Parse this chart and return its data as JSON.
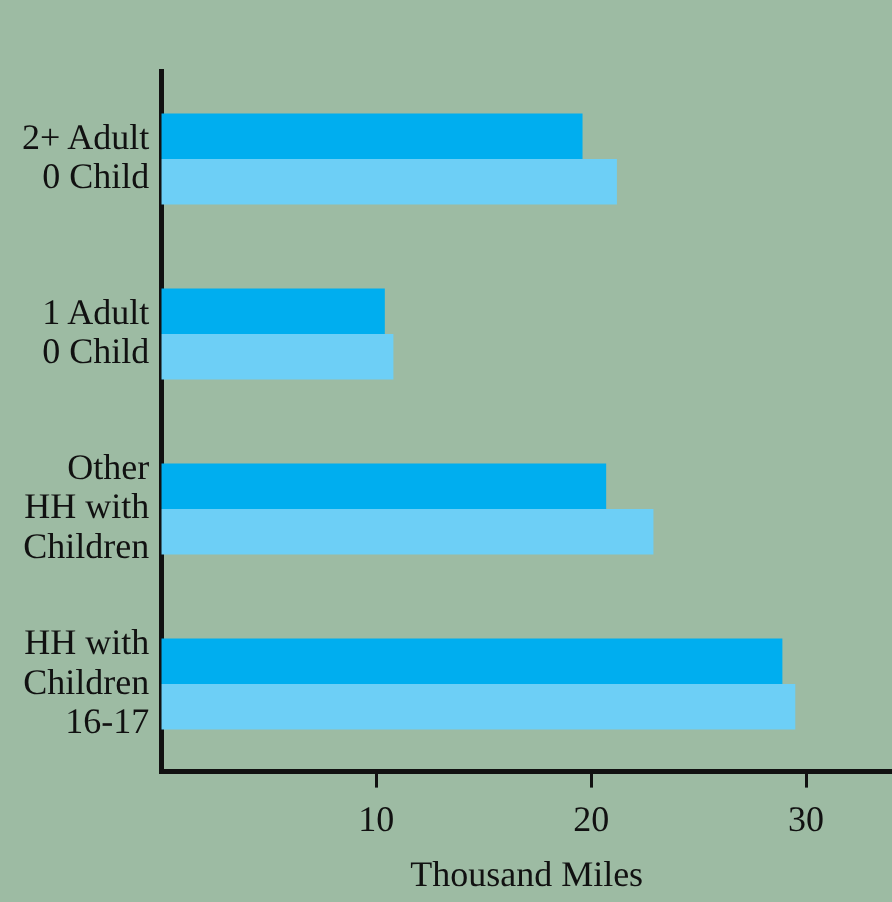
{
  "chart_data": {
    "type": "bar",
    "orientation": "horizontal",
    "xlabel": "Thousand Miles",
    "categories": [
      "2+ Adult\n0 Child",
      "1 Adult\n0 Child",
      "Other\nHH with\nChildren",
      "HH with\nChildren\n16-17"
    ],
    "series": [
      {
        "color": "#00aeef",
        "values": [
          19.6,
          10.4,
          20.7,
          28.9
        ]
      },
      {
        "color": "#6dcff6",
        "values": [
          21.2,
          10.8,
          22.9,
          29.5
        ]
      }
    ],
    "xlim": [
      0,
      34
    ],
    "xticks": [
      10,
      20,
      30
    ],
    "grid": false,
    "legend": false
  }
}
